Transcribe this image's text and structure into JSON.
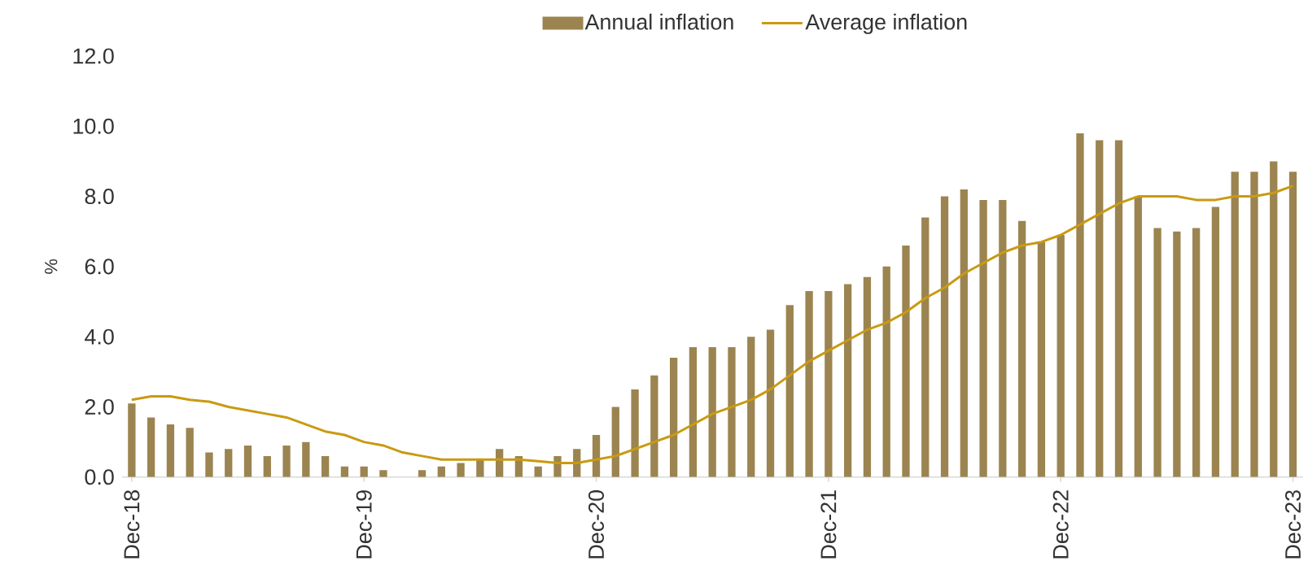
{
  "chart_data": {
    "type": "bar",
    "ylabel": "%",
    "categories": [
      "Dec-18",
      null,
      null,
      null,
      null,
      null,
      null,
      null,
      null,
      null,
      null,
      null,
      "Dec-19",
      null,
      null,
      null,
      null,
      null,
      null,
      null,
      null,
      null,
      null,
      null,
      "Dec-20",
      null,
      null,
      null,
      null,
      null,
      null,
      null,
      null,
      null,
      null,
      null,
      "Dec-21",
      null,
      null,
      null,
      null,
      null,
      null,
      null,
      null,
      null,
      null,
      null,
      "Dec-22",
      null,
      null,
      null,
      null,
      null,
      null,
      null,
      null,
      null,
      null,
      null,
      "Dec-23"
    ],
    "series": [
      {
        "name": "Annual inflation",
        "color": "#9b8450",
        "values": [
          2.1,
          1.7,
          1.5,
          1.4,
          0.7,
          0.8,
          0.9,
          0.6,
          0.9,
          1.0,
          0.6,
          0.3,
          0.3,
          0.2,
          0,
          0.2,
          0.3,
          0.4,
          0.5,
          0.8,
          0.6,
          0.3,
          0.6,
          0.8,
          1.2,
          2.0,
          2.5,
          2.9,
          3.4,
          3.7,
          3.7,
          3.7,
          4.0,
          4.2,
          4.9,
          5.3,
          5.3,
          5.5,
          5.7,
          6.0,
          6.6,
          7.4,
          8.0,
          8.2,
          7.9,
          7.9,
          7.3,
          6.7,
          6.9,
          9.8,
          9.6,
          9.6,
          8.0,
          7.1,
          7.0,
          7.1,
          7.7,
          8.7,
          8.7,
          9.0,
          8.7
        ]
      },
      {
        "name": "Average inflation",
        "type": "line",
        "color": "#c99a12",
        "values": [
          2.2,
          2.3,
          2.3,
          2.2,
          2.15,
          2.0,
          1.9,
          1.8,
          1.7,
          1.5,
          1.3,
          1.2,
          1.0,
          0.9,
          0.7,
          0.6,
          0.5,
          0.5,
          0.5,
          0.5,
          0.5,
          0.45,
          0.4,
          0.4,
          0.5,
          0.6,
          0.8,
          1.0,
          1.2,
          1.5,
          1.8,
          2.0,
          2.2,
          2.5,
          2.9,
          3.3,
          3.6,
          3.9,
          4.2,
          4.4,
          4.7,
          5.1,
          5.4,
          5.8,
          6.1,
          6.4,
          6.6,
          6.7,
          6.9,
          7.2,
          7.5,
          7.8,
          8.0,
          8.0,
          8.0,
          7.9,
          7.9,
          8.0,
          8.0,
          8.1,
          8.3
        ]
      }
    ],
    "ylim": [
      0,
      12
    ],
    "yticks": [
      {
        "value": 0,
        "label": "0.0"
      },
      {
        "value": 2,
        "label": "2.0"
      },
      {
        "value": 4,
        "label": "4.0"
      },
      {
        "value": 6,
        "label": "6.0"
      },
      {
        "value": 8,
        "label": "8.0"
      },
      {
        "value": 10,
        "label": "10.0"
      },
      {
        "value": 12,
        "label": "12.0"
      }
    ],
    "legend": "top",
    "grid": false,
    "marker": "none",
    "line_style": "solid"
  }
}
